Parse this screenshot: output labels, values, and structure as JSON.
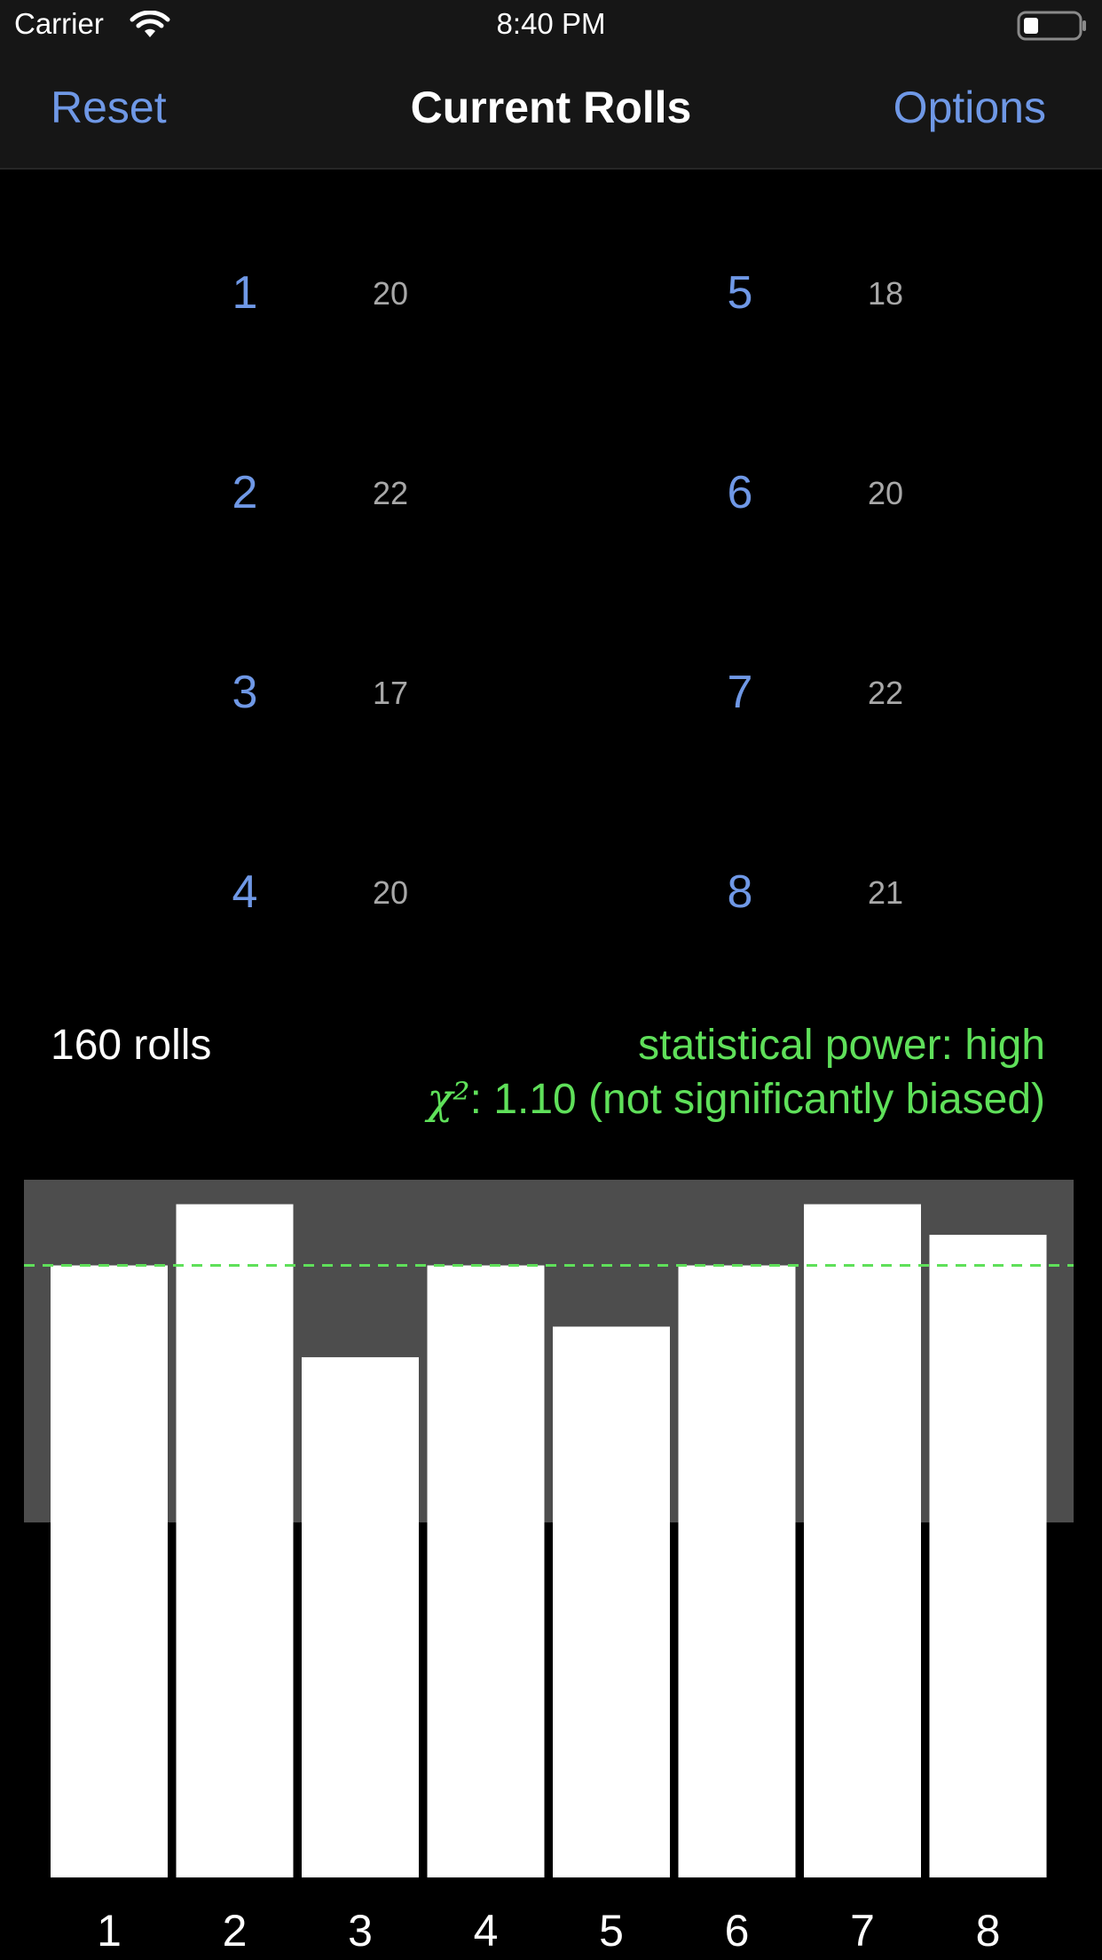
{
  "status_bar": {
    "carrier": "Carrier",
    "time": "8:40 PM",
    "icons": [
      "wifi-icon",
      "battery-icon"
    ]
  },
  "nav": {
    "left_button": "Reset",
    "title": "Current Rolls",
    "right_button": "Options"
  },
  "faces": [
    {
      "face": "1",
      "count": "20"
    },
    {
      "face": "2",
      "count": "22"
    },
    {
      "face": "3",
      "count": "17"
    },
    {
      "face": "4",
      "count": "20"
    },
    {
      "face": "5",
      "count": "18"
    },
    {
      "face": "6",
      "count": "20"
    },
    {
      "face": "7",
      "count": "22"
    },
    {
      "face": "8",
      "count": "21"
    }
  ],
  "summary": {
    "total_rolls": "160 rolls",
    "power": "statistical power: high",
    "chi_symbol": "χ²",
    "chi_text": ": 1.10 (not significantly biased)"
  },
  "colors": {
    "accent": "#6f98e6",
    "ok": "#5fe05a",
    "bar": "#ffffff",
    "band": "#4d4d4d",
    "count": "#a8a8a8"
  },
  "chart_data": {
    "type": "bar",
    "categories": [
      "1",
      "2",
      "3",
      "4",
      "5",
      "6",
      "7",
      "8"
    ],
    "values": [
      20,
      22,
      17,
      20,
      18,
      20,
      22,
      21
    ],
    "expected": 20,
    "band": [
      11.6,
      22.8
    ],
    "ylim": [
      0,
      22.8
    ],
    "grid": false
  }
}
